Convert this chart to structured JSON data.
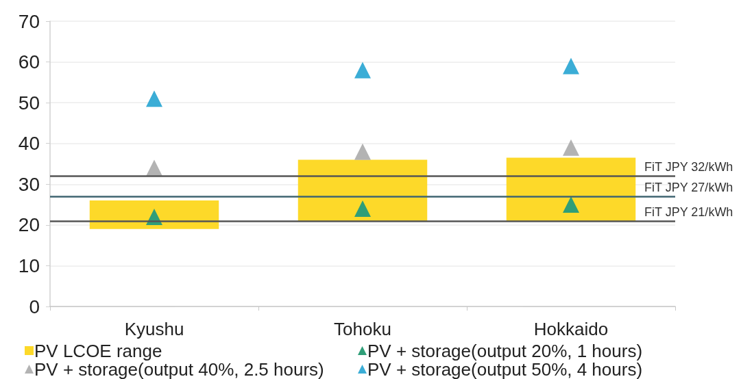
{
  "chart_data": {
    "type": "bar",
    "categories": [
      "Kyushu",
      "Tohoku",
      "Hokkaido"
    ],
    "series": [
      {
        "name": "PV LCOE range",
        "color": "#fdd929",
        "base": [
          19,
          21,
          21
        ],
        "values": [
          7,
          15,
          15.5
        ]
      },
      {
        "name": "PV + storage(output 20%, 1 hours)",
        "type": "scatter",
        "color": "#2f9e78",
        "values": [
          22,
          24,
          25
        ]
      },
      {
        "name": "PV + storage(output 40%, 2.5 hours)",
        "type": "scatter",
        "color": "#b3b3b3",
        "values": [
          34,
          38,
          39
        ]
      },
      {
        "name": "PV + storage(output 50%, 4 hours)",
        "type": "scatter",
        "color": "#3badd6",
        "values": [
          51,
          58,
          59
        ]
      }
    ],
    "ylim": [
      0,
      70
    ],
    "yticks": [
      0,
      10,
      20,
      30,
      40,
      50,
      60,
      70
    ],
    "grid": "y",
    "legend": "bottom",
    "marker": "triangle",
    "ref_lines": [
      {
        "axis": "y",
        "value": 32,
        "label": "FiT JPY 32/kWh",
        "color": "#555555"
      },
      {
        "axis": "y",
        "value": 27,
        "label": "FiT JPY 27/kWh",
        "color": "#3f6470"
      },
      {
        "axis": "y",
        "value": 21,
        "label": "FiT JPY 21/kWh",
        "color": "#555555"
      }
    ]
  }
}
